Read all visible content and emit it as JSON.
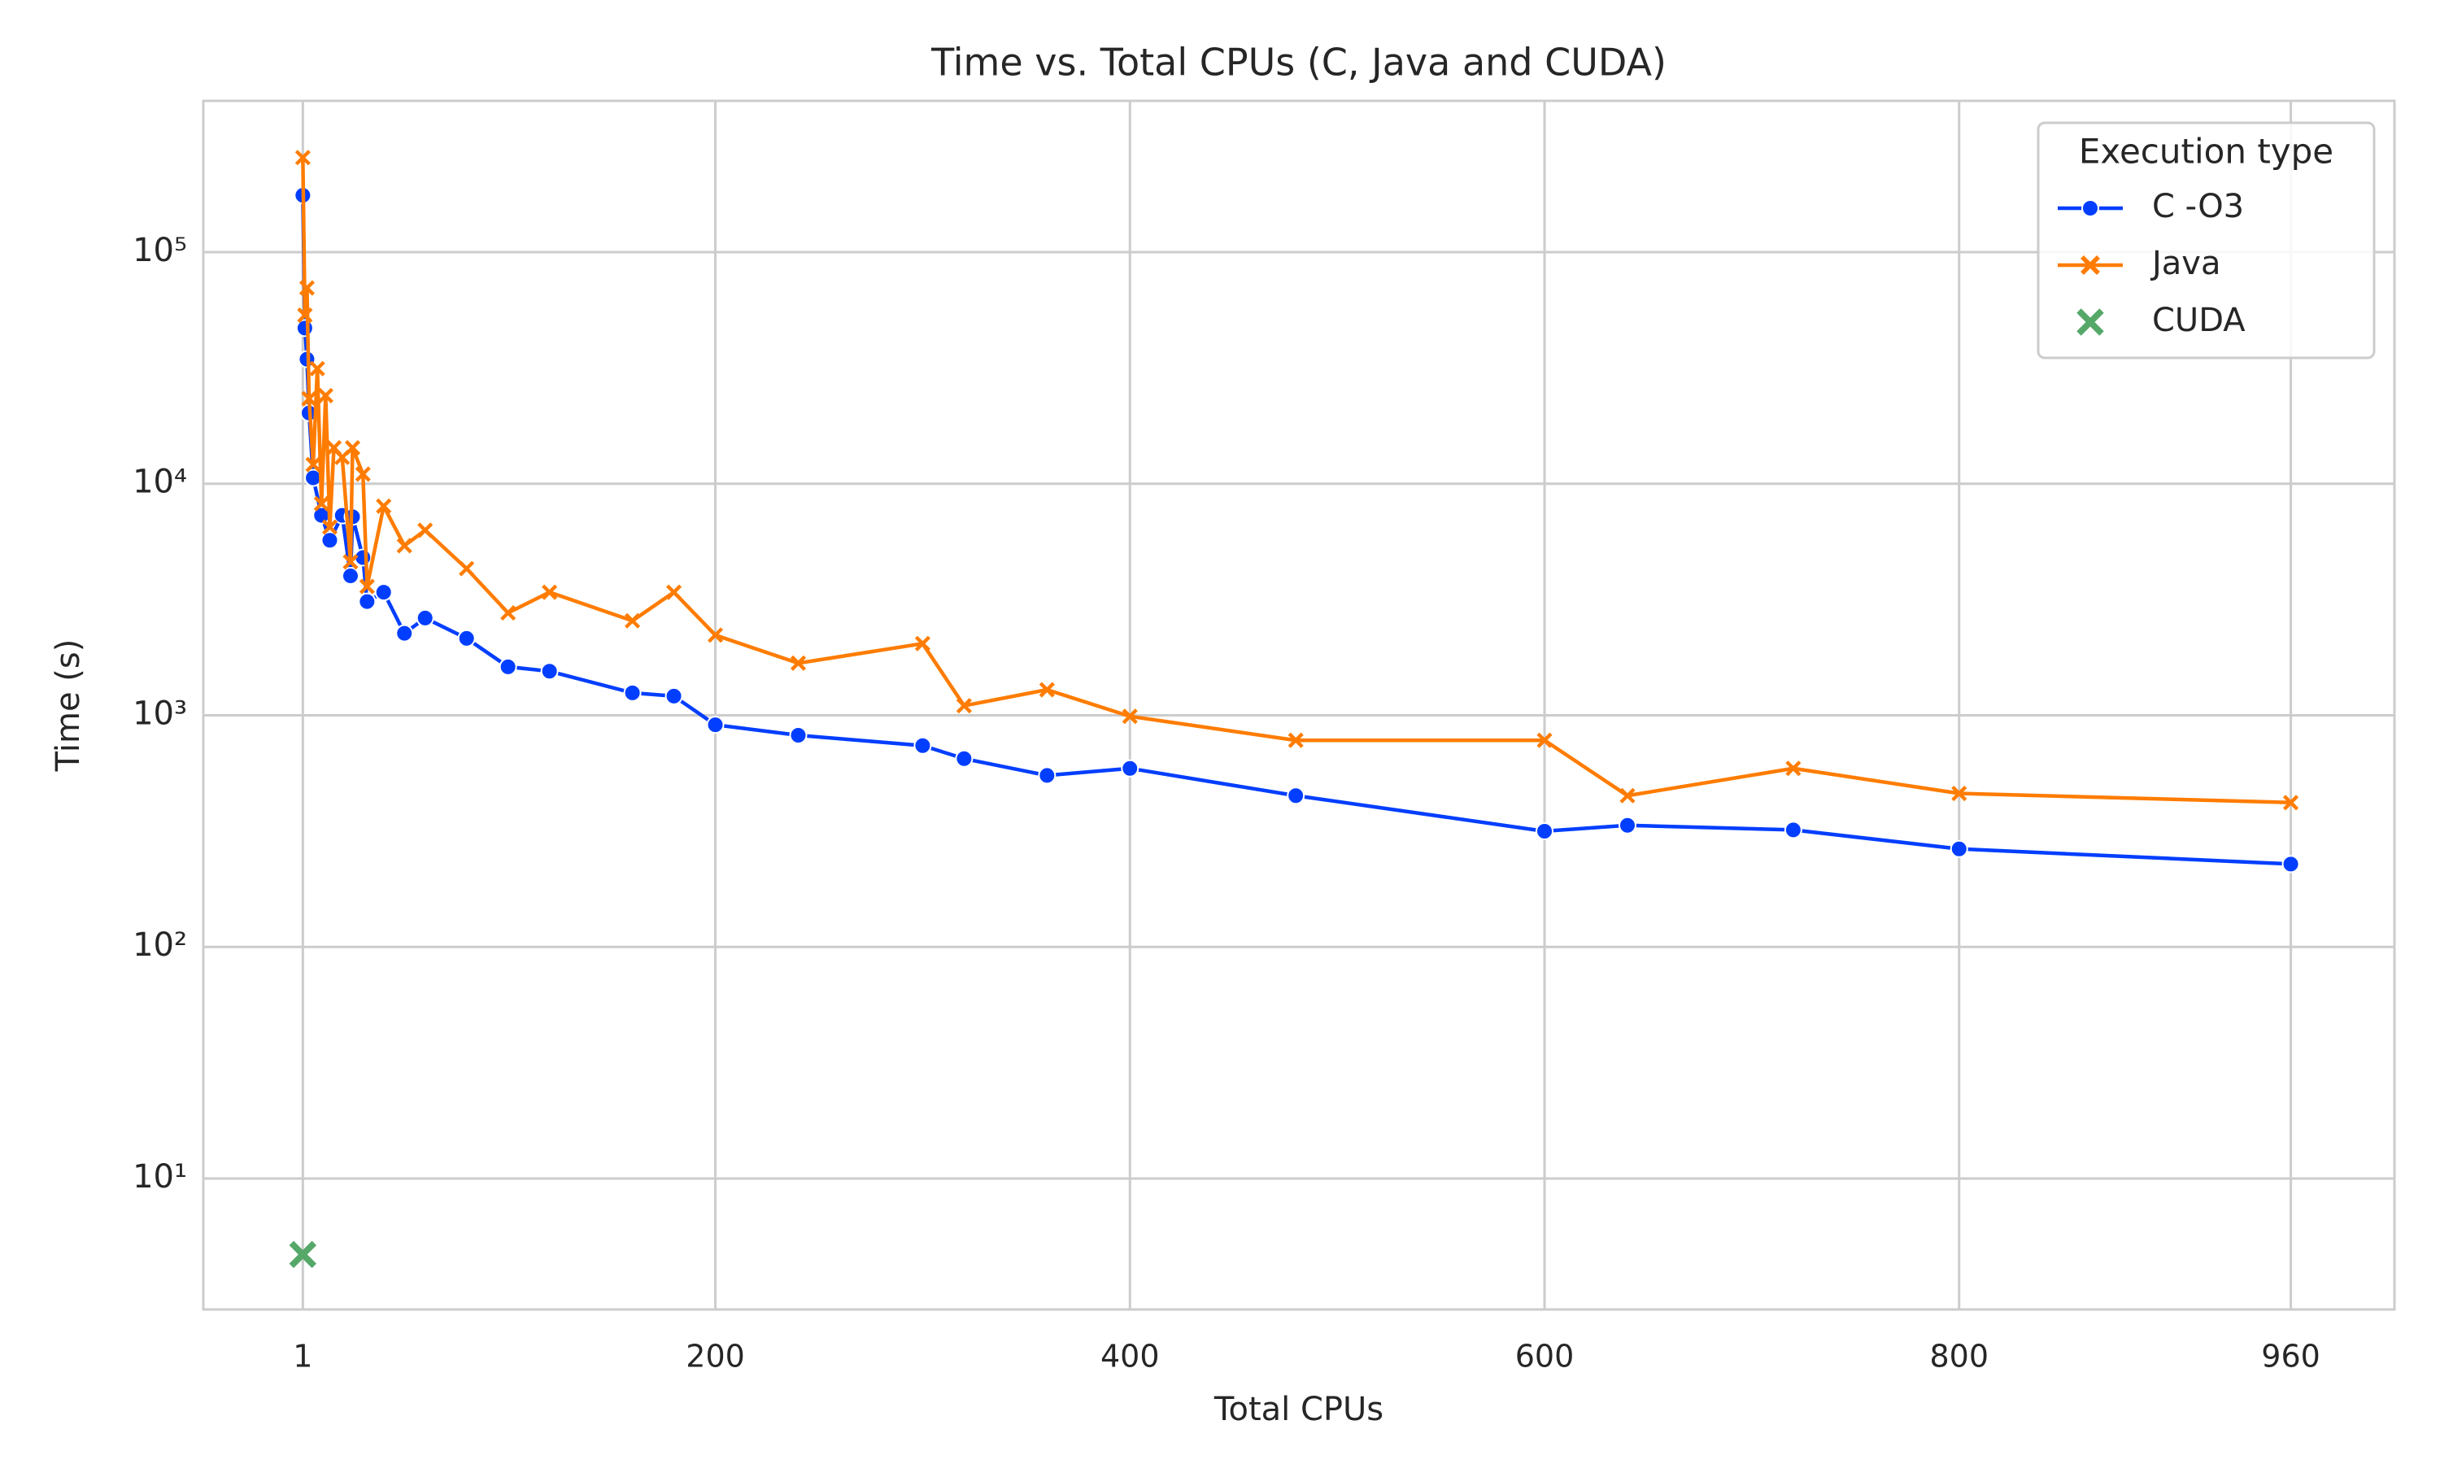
{
  "chart_data": {
    "type": "line",
    "title": "Time vs. Total CPUs (C, Java and CUDA)",
    "x_label": "Total CPUs",
    "y_label": "Time (s)",
    "log_y": true,
    "grid": true,
    "legend_title": "Execution type",
    "legend_position": "upper right",
    "xlim": [
      -47,
      1010
    ],
    "xticks": [
      1,
      200,
      400,
      600,
      800,
      960
    ],
    "ylim": [
      2.72,
      450000
    ],
    "yticks": [
      {
        "value": 10,
        "label": "10¹"
      },
      {
        "value": 100,
        "label": "10²"
      },
      {
        "value": 1000,
        "label": "10³"
      },
      {
        "value": 10000,
        "label": "10⁴"
      },
      {
        "value": 100000,
        "label": "10⁵"
      }
    ],
    "series": [
      {
        "name": "C -O3",
        "color": "#023eff",
        "marker": "circle",
        "mode": "line",
        "x": [
          1,
          2,
          3,
          4,
          6,
          10,
          14,
          20,
          24,
          25,
          30,
          32,
          40,
          50,
          60,
          80,
          100,
          120,
          160,
          180,
          200,
          240,
          300,
          320,
          360,
          400,
          480,
          600,
          640,
          720,
          800,
          960
        ],
        "values": [
          176000,
          47000,
          34500,
          20200,
          10600,
          7300,
          5700,
          7300,
          4000,
          7200,
          4800,
          3100,
          3400,
          2260,
          2630,
          2150,
          1620,
          1550,
          1250,
          1210,
          910,
          820,
          740,
          650,
          550,
          590,
          450,
          316,
          335,
          320,
          265,
          228
        ]
      },
      {
        "name": "Java",
        "color": "#ff7c00",
        "marker": "x",
        "mode": "line",
        "x": [
          1,
          2,
          3,
          4,
          6,
          8,
          10,
          12,
          14,
          16,
          20,
          24,
          25,
          30,
          32,
          40,
          50,
          60,
          80,
          100,
          120,
          160,
          180,
          200,
          240,
          300,
          320,
          360,
          400,
          480,
          600,
          640,
          720,
          800,
          960
        ],
        "values": [
          256000,
          53400,
          70000,
          23300,
          12100,
          31400,
          8200,
          24000,
          6500,
          14300,
          13000,
          4600,
          14300,
          11000,
          3600,
          8000,
          5400,
          6300,
          4300,
          2770,
          3400,
          2560,
          3400,
          2220,
          1680,
          2040,
          1100,
          1290,
          990,
          780,
          780,
          450,
          590,
          460,
          420
        ]
      },
      {
        "name": "CUDA",
        "color": "#55a868",
        "marker": "x",
        "mode": "scatter",
        "x": [
          1
        ],
        "values": [
          4.7
        ]
      }
    ]
  }
}
